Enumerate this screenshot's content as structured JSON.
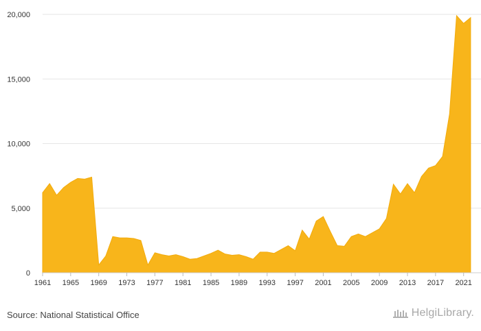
{
  "chart_data": {
    "type": "area",
    "color": "#f8b51b",
    "x": [
      1961,
      1962,
      1963,
      1964,
      1965,
      1966,
      1967,
      1968,
      1969,
      1970,
      1971,
      1972,
      1973,
      1974,
      1975,
      1976,
      1977,
      1978,
      1979,
      1980,
      1981,
      1982,
      1983,
      1984,
      1985,
      1986,
      1987,
      1988,
      1989,
      1990,
      1991,
      1992,
      1993,
      1994,
      1995,
      1996,
      1997,
      1998,
      1999,
      2000,
      2001,
      2002,
      2003,
      2004,
      2005,
      2006,
      2007,
      2008,
      2009,
      2010,
      2011,
      2012,
      2013,
      2014,
      2015,
      2016,
      2017,
      2018,
      2019,
      2020,
      2021,
      2022
    ],
    "values": [
      6200,
      6900,
      6000,
      6600,
      7000,
      7300,
      7250,
      7400,
      600,
      1300,
      2800,
      2700,
      2700,
      2650,
      2500,
      600,
      1550,
      1400,
      1300,
      1400,
      1250,
      1050,
      1100,
      1300,
      1500,
      1750,
      1450,
      1350,
      1400,
      1250,
      1050,
      1600,
      1600,
      1500,
      1800,
      2100,
      1700,
      3300,
      2600,
      4000,
      4350,
      3200,
      2100,
      2050,
      2800,
      3000,
      2800,
      3100,
      3400,
      4200,
      6850,
      6100,
      6900,
      6200,
      7450,
      8100,
      8300,
      9000,
      12300,
      19900,
      19300,
      19750
    ],
    "xticks": [
      1961,
      1965,
      1969,
      1973,
      1977,
      1981,
      1985,
      1989,
      1993,
      1997,
      2001,
      2005,
      2009,
      2013,
      2017,
      2021
    ],
    "yticks": [
      0,
      5000,
      10000,
      15000,
      20000
    ],
    "ytick_labels": [
      "0",
      "5,000",
      "10,000",
      "15,000",
      "20,000"
    ],
    "ylim": [
      0,
      20000
    ],
    "grid": true,
    "title": "",
    "xlabel": "",
    "ylabel": ""
  },
  "footer": {
    "source": "Source: National Statistical Office",
    "brand": "HelgiLibrary."
  }
}
